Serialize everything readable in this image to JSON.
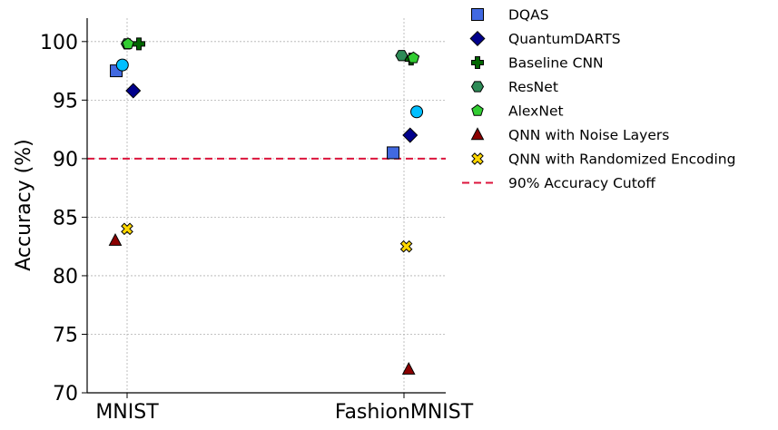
{
  "chart_data": {
    "type": "scatter",
    "title": "",
    "xlabel": "",
    "ylabel": "Accuracy (%)",
    "categories": [
      "MNIST",
      "FashionMNIST"
    ],
    "ylim": [
      70,
      102
    ],
    "yticks": [
      70,
      75,
      80,
      85,
      90,
      95,
      100
    ],
    "grid": true,
    "legend_position": "outside-right",
    "series": [
      {
        "name": "DQAS",
        "marker": "square",
        "color": "#4169e1",
        "values": [
          97.5,
          90.5
        ],
        "offsets": [
          -0.23,
          -0.23
        ]
      },
      {
        "name": "QuantumDARTS",
        "marker": "diamond",
        "color": "#00008b",
        "values": [
          95.8,
          92.0
        ],
        "offsets": [
          0.13,
          0.13
        ]
      },
      {
        "name": "Baseline CNN",
        "marker": "plus",
        "color": "#006400",
        "values": [
          99.8,
          98.5
        ],
        "offsets": [
          0.25,
          0.15
        ]
      },
      {
        "name": "ResNet",
        "marker": "hexagon",
        "color": "#2e8b57",
        "values": [
          99.8,
          98.8
        ],
        "offsets": [
          0.0,
          -0.05
        ]
      },
      {
        "name": "AlexNet",
        "marker": "pentagon",
        "color": "#32cd32",
        "values": [
          99.8,
          98.6
        ],
        "offsets": [
          0.02,
          0.2
        ]
      },
      {
        "name": "QNN with Noise Layers",
        "marker": "triangle",
        "color": "#8b0000",
        "values": [
          83.0,
          72.0
        ],
        "offsets": [
          -0.25,
          0.1
        ]
      },
      {
        "name": "QNN with Randomized Encoding",
        "marker": "x",
        "color": "#ffd700",
        "values": [
          84.0,
          82.5
        ],
        "offsets": [
          0.0,
          0.05
        ]
      },
      {
        "name": "",
        "marker": "circle",
        "color": "#00bfff",
        "values": [
          98.0,
          94.0
        ],
        "offsets": [
          -0.1,
          0.27
        ]
      }
    ],
    "reference_line": {
      "name": "90% Accuracy Cutoff",
      "value": 90,
      "color": "#dc143c",
      "style": "dashed"
    }
  }
}
